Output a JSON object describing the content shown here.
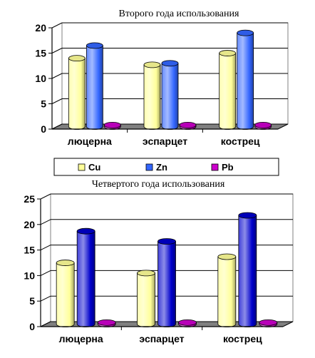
{
  "chart_data": [
    {
      "type": "bar",
      "title": "Второго года использования",
      "categories": [
        "люцерна",
        "эспарцет",
        "кострец"
      ],
      "series": [
        {
          "name": "Cu",
          "values": [
            13.5,
            12.2,
            14.5
          ]
        },
        {
          "name": "Zn",
          "values": [
            16.0,
            12.5,
            18.5
          ]
        },
        {
          "name": "Pb",
          "values": [
            0.3,
            0.3,
            0.3
          ]
        }
      ],
      "ylim": [
        0,
        20
      ],
      "yticks": [
        0,
        5,
        10,
        15,
        20
      ],
      "grid": true,
      "legend": "bottom"
    },
    {
      "type": "bar",
      "title": "Четвертого года использования",
      "categories": [
        "люцерна",
        "эспарцет",
        "кострец"
      ],
      "series": [
        {
          "name": "Cu",
          "values": [
            12.0,
            10.0,
            13.2
          ]
        },
        {
          "name": "Zn",
          "values": [
            18.2,
            16.2,
            21.3
          ]
        },
        {
          "name": "Pb",
          "values": [
            0.3,
            0.3,
            0.3
          ]
        }
      ],
      "ylim": [
        0,
        25
      ],
      "yticks": [
        0,
        5,
        10,
        15,
        20,
        25
      ],
      "grid": true
    }
  ],
  "colors": {
    "chart1": [
      "#ffff99",
      "#3366ff",
      "#cc00cc"
    ],
    "chart2": [
      "#ffff99",
      "#0000cc",
      "#cc00cc"
    ]
  }
}
